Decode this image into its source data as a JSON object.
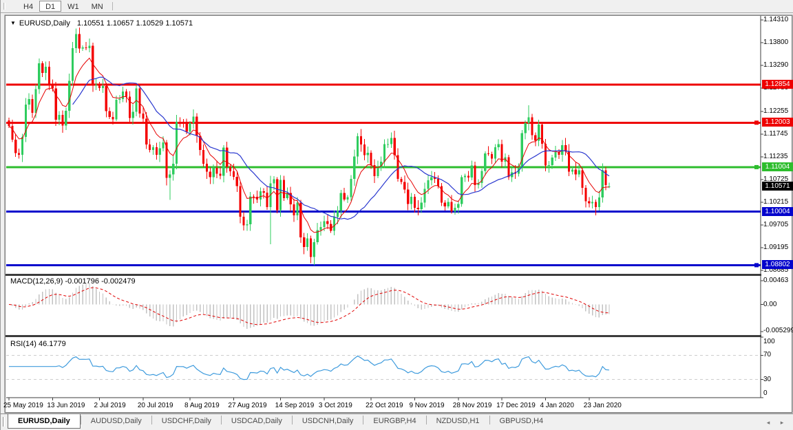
{
  "toolbar": {
    "timeframes": [
      {
        "label": "H4",
        "active": false
      },
      {
        "label": "D1",
        "active": true
      },
      {
        "label": "W1",
        "active": false
      },
      {
        "label": "MN",
        "active": false
      }
    ]
  },
  "header": {
    "arrow": "▼",
    "symbol": "EURUSD,Daily",
    "ohlc": "1.10551 1.10657 1.10529 1.10571"
  },
  "indicators": {
    "macd": {
      "label": "MACD(12,26,9)",
      "value1": "-0.001796",
      "value2": "-0.002479",
      "fast": 12,
      "slow": 26,
      "signal": 9
    },
    "rsi": {
      "label": "RSI(14)",
      "value": "46.1779",
      "period": 14,
      "levels": [
        70,
        30
      ]
    }
  },
  "price_axis": {
    "labels": [
      "1.14310",
      "1.13800",
      "1.13290",
      "1.12780",
      "1.12255",
      "1.11745",
      "1.11235",
      "1.10725",
      "1.10215",
      "1.09705",
      "1.09195",
      "1.08685"
    ],
    "values": [
      1.1431,
      1.138,
      1.1329,
      1.1278,
      1.12255,
      1.11745,
      1.11235,
      1.10725,
      1.10215,
      1.09705,
      1.09195,
      1.08685
    ]
  },
  "macd_axis": {
    "labels": [
      "0.00463",
      "0.00",
      "-0.005299"
    ],
    "values": [
      0.00463,
      0,
      -0.005299
    ]
  },
  "rsi_axis": {
    "labels": [
      "100",
      "70",
      "30",
      "0"
    ],
    "values": [
      100,
      70,
      30,
      0
    ]
  },
  "tags": [
    {
      "text": "1.12854",
      "price": 1.12854,
      "bg": "#ee0000",
      "kind": "hline"
    },
    {
      "text": "1.12003",
      "price": 1.12003,
      "bg": "#ee0000",
      "kind": "hline"
    },
    {
      "text": "1.11004",
      "price": 1.11004,
      "bg": "#2dbd2d",
      "kind": "hline"
    },
    {
      "text": "1.10571",
      "price": 1.10571,
      "bg": "#000000",
      "kind": "current"
    },
    {
      "text": "1.10004",
      "price": 1.10004,
      "bg": "#0404cc",
      "kind": "hline"
    },
    {
      "text": "1.08802",
      "price": 1.08802,
      "bg": "#0404cc",
      "kind": "hline"
    }
  ],
  "tab_bar": {
    "tabs": [
      {
        "label": "EURUSD,Daily",
        "active": true
      },
      {
        "label": "AUDUSD,Daily",
        "active": false
      },
      {
        "label": "USDCHF,Daily",
        "active": false
      },
      {
        "label": "USDCAD,Daily",
        "active": false
      },
      {
        "label": "USDCNH,Daily",
        "active": false
      },
      {
        "label": "EURGBP,H4",
        "active": false
      },
      {
        "label": "NZDUSD,H1",
        "active": false
      },
      {
        "label": "GBPUSD,H4",
        "active": false
      }
    ],
    "arrows": [
      "◂",
      "▸"
    ]
  },
  "colors": {
    "up": "#2ecc5e",
    "down": "#f40000",
    "ma_fast": "#e60000",
    "ma_slow": "#2a38cf",
    "hline_red": "#ee0000",
    "hline_green": "#2dbd2d",
    "hline_blue": "#0404cc",
    "macd_hist": "#c2c2c2",
    "macd_signal": "#e00000",
    "rsi_line": "#3e9bdd",
    "rsi_level": "#cccccc"
  },
  "chart_data": {
    "type": "candlestick",
    "symbol": "EURUSD",
    "timeframe": "Daily",
    "current_ohlc": {
      "open": 1.10551,
      "high": 1.10657,
      "low": 1.10529,
      "close": 1.10571
    },
    "price_range": [
      1.08685,
      1.1431
    ],
    "x_axis_dates": [
      "25 May 2019",
      "13 Jun 2019",
      "2 Jul 2019",
      "20 Jul 2019",
      "8 Aug 2019",
      "27 Aug 2019",
      "14 Sep 2019",
      "3 Oct 2019",
      "22 Oct 2019",
      "9 Nov 2019",
      "28 Nov 2019",
      "17 Dec 2019",
      "4 Jan 2020",
      "23 Jan 2020"
    ],
    "hlines": [
      {
        "price": 1.12854,
        "color": "#ee0000"
      },
      {
        "price": 1.12003,
        "color": "#ee0000"
      },
      {
        "price": 1.11004,
        "color": "#2dbd2d"
      },
      {
        "price": 1.10004,
        "color": "#0404cc"
      },
      {
        "price": 1.08802,
        "color": "#0404cc"
      }
    ],
    "first_open": 1.1205,
    "closes": [
      1.1193,
      1.1162,
      1.1132,
      1.1128,
      1.1168,
      1.1241,
      1.1253,
      1.1222,
      1.1276,
      1.1334,
      1.1312,
      1.1326,
      1.1288,
      1.1277,
      1.1207,
      1.1218,
      1.1194,
      1.1227,
      1.1294,
      1.1368,
      1.1399,
      1.1367,
      1.1369,
      1.1368,
      1.1373,
      1.1285,
      1.1286,
      1.1278,
      1.1283,
      1.1226,
      1.1213,
      1.1208,
      1.1252,
      1.1253,
      1.127,
      1.1259,
      1.1211,
      1.1225,
      1.1277,
      1.1221,
      1.1209,
      1.1151,
      1.1139,
      1.1145,
      1.1128,
      1.1143,
      1.1156,
      1.1076,
      1.1084,
      1.1108,
      1.1202,
      1.12,
      1.1199,
      1.118,
      1.1199,
      1.1214,
      1.1171,
      1.1139,
      1.1108,
      1.109,
      1.1078,
      1.1099,
      1.1086,
      1.1081,
      1.1144,
      1.1101,
      1.1091,
      1.1079,
      1.1058,
      1.0989,
      1.097,
      1.0972,
      1.1035,
      1.1034,
      1.1028,
      1.1046,
      1.1043,
      1.1011,
      1.1064,
      1.1073,
      1.1004,
      1.1072,
      1.1031,
      1.1042,
      1.1017,
      1.0992,
      1.1021,
      1.0943,
      1.0921,
      1.094,
      1.0899,
      1.0932,
      1.0959,
      1.0966,
      1.0979,
      1.0973,
      1.0957,
      1.0988,
      1.1003,
      1.1042,
      1.1028,
      1.1033,
      1.1074,
      1.1124,
      1.117,
      1.1151,
      1.1127,
      1.1133,
      1.1105,
      1.108,
      1.1099,
      1.1113,
      1.1152,
      1.1152,
      1.1166,
      1.1127,
      1.1074,
      1.1067,
      1.105,
      1.1018,
      1.1034,
      1.1009,
      1.1006,
      1.1021,
      1.1052,
      1.1071,
      1.1078,
      1.1074,
      1.1058,
      1.1021,
      1.1012,
      1.1022,
      1.1001,
      1.1009,
      1.1018,
      1.1078,
      1.1081,
      1.1077,
      1.1104,
      1.106,
      1.1065,
      1.1092,
      1.1131,
      1.113,
      1.112,
      1.1145,
      1.1152,
      1.1113,
      1.1123,
      1.1078,
      1.1089,
      1.1086,
      1.1099,
      1.1177,
      1.1199,
      1.1212,
      1.1172,
      1.116,
      1.1196,
      1.1153,
      1.1104,
      1.1105,
      1.1122,
      1.1134,
      1.1128,
      1.115,
      1.1136,
      1.109,
      1.1095,
      1.1084,
      1.1093,
      1.1054,
      1.1024,
      1.1019,
      1.1022,
      1.1011,
      1.1032,
      1.1093,
      1.106,
      1.10571
    ],
    "wick_overrides": {
      "20": {
        "high": 1.1412
      },
      "48": {
        "low": 1.1027
      },
      "78": {
        "low": 1.0927
      },
      "91": {
        "low": 1.08802
      },
      "155": {
        "high": 1.1239
      },
      "175": {
        "low": 1.0992
      },
      "179": {
        "open": 1.10551,
        "high": 1.10657,
        "low": 1.10529
      }
    },
    "ma_fast_period": 8,
    "ma_slow_period": 20
  }
}
